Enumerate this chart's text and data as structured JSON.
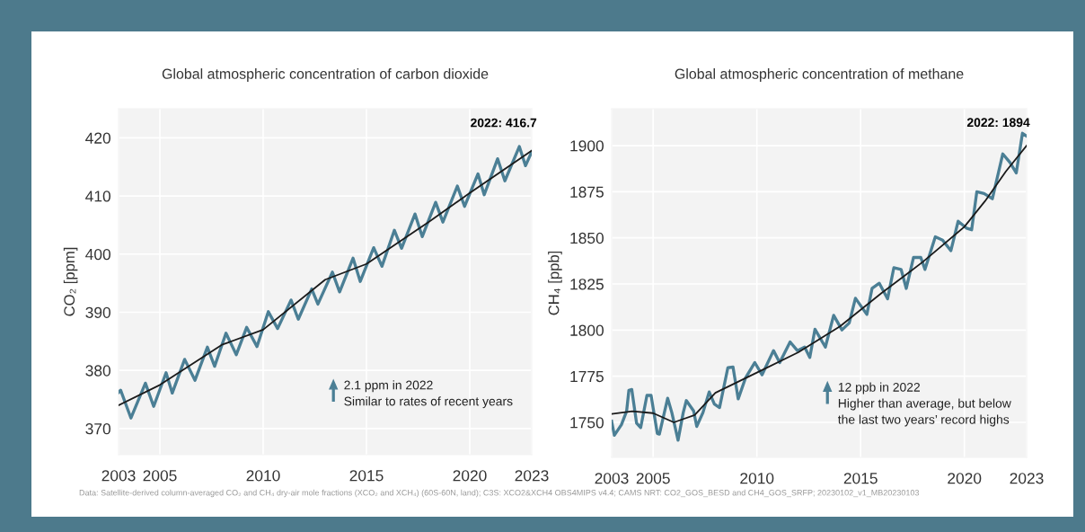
{
  "chart_data": [
    {
      "type": "line",
      "title": "Global atmospheric concentration of carbon dioxide",
      "ylabel": "CO₂ [ppm]",
      "xlim": [
        2003,
        2023
      ],
      "xticks": [
        2003,
        2005,
        2010,
        2015,
        2020,
        2023
      ],
      "ylim": [
        365.5,
        425
      ],
      "yticks": [
        370,
        380,
        390,
        400,
        410,
        420
      ],
      "grid": true,
      "legend": false,
      "series": [
        {
          "color": "#4b7f95",
          "x": [
            2003.0,
            2003.1,
            2003.6,
            2004.3,
            2004.7,
            2005.3,
            2005.6,
            2006.2,
            2006.7,
            2007.3,
            2007.65,
            2008.2,
            2008.7,
            2009.2,
            2009.7,
            2010.25,
            2010.7,
            2011.35,
            2011.7,
            2012.35,
            2012.65,
            2013.35,
            2013.7,
            2014.35,
            2014.7,
            2015.35,
            2015.75,
            2016.35,
            2016.7,
            2017.35,
            2017.7,
            2018.35,
            2018.7,
            2019.4,
            2019.75,
            2020.4,
            2020.7,
            2021.35,
            2021.7,
            2022.4,
            2022.7,
            2023.0
          ],
          "values": [
            376.2,
            376.6,
            371.8,
            377.8,
            373.8,
            379.6,
            376.1,
            381.9,
            378.3,
            384.0,
            380.7,
            386.4,
            382.7,
            387.4,
            384.1,
            390.1,
            387.2,
            392.1,
            388.8,
            394.0,
            391.4,
            396.9,
            393.5,
            399.3,
            395.3,
            401.1,
            397.9,
            404.1,
            401.0,
            406.9,
            403.0,
            408.9,
            405.5,
            411.7,
            408.2,
            413.8,
            410.2,
            416.4,
            412.6,
            418.5,
            415.2,
            417.6
          ]
        },
        {
          "color": "#1a1a1a",
          "x": [
            2003,
            2005,
            2008,
            2010,
            2013,
            2015,
            2018,
            2020,
            2023
          ],
          "values": [
            374.0,
            377.5,
            384.4,
            387.0,
            395.6,
            398.3,
            405.5,
            410.5,
            417.8
          ]
        }
      ],
      "annotations": [
        {
          "text": "2022: 416.7",
          "x": 2022,
          "y": 416.7
        },
        "2.1 ppm in 2022\nSimilar to rates of recent years",
        "Data: Satellite-derived column-averaged CO₂ and CH₄ dry-air mole fractions (XCO₂ and XCH₄) (60S-60N, land); C3S: XCO2&XCH4 OBS4MIPS v4.4; CAMS NRT: CO2_GOS_BESD and CH4_GOS_SRFP; 20230102_v1_MB20230103"
      ]
    },
    {
      "type": "line",
      "title": "Global atmospheric concentration of methane",
      "ylabel": "CH₄ [ppb]",
      "xlim": [
        2003,
        2023
      ],
      "xticks": [
        2003,
        2005,
        2010,
        2015,
        2020,
        2023
      ],
      "ylim": [
        1731,
        1920
      ],
      "yticks": [
        1750,
        1775,
        1800,
        1825,
        1850,
        1875,
        1900
      ],
      "grid": true,
      "legend": false,
      "series": [
        {
          "color": "#4b7f95",
          "x": [
            2003.0,
            2003.13,
            2003.47,
            2003.72,
            2003.83,
            2003.97,
            2004.2,
            2004.4,
            2004.7,
            2004.9,
            2005.2,
            2005.3,
            2005.7,
            2005.9,
            2006.2,
            2006.45,
            2006.6,
            2006.95,
            2007.1,
            2007.4,
            2007.7,
            2007.95,
            2008.2,
            2008.6,
            2008.85,
            2009.1,
            2009.45,
            2009.9,
            2010.25,
            2010.8,
            2011.1,
            2011.6,
            2011.95,
            2012.3,
            2012.55,
            2012.8,
            2013.3,
            2013.7,
            2014.1,
            2014.45,
            2014.75,
            2015.3,
            2015.55,
            2015.9,
            2016.3,
            2016.6,
            2016.95,
            2017.2,
            2017.55,
            2017.9,
            2018.1,
            2018.6,
            2018.95,
            2019.35,
            2019.7,
            2020.1,
            2020.35,
            2020.6,
            2020.95,
            2021.35,
            2021.85,
            2022.2,
            2022.5,
            2022.8,
            2023.0
          ],
          "values": [
            1750.6,
            1743,
            1748.7,
            1756,
            1767.4,
            1767.8,
            1749.6,
            1747.2,
            1764.6,
            1764.6,
            1744,
            1743.6,
            1763.1,
            1755.3,
            1740.3,
            1755.3,
            1761.8,
            1756.2,
            1747.8,
            1755.3,
            1766.5,
            1759.9,
            1758,
            1779.6,
            1780,
            1762.7,
            1774,
            1782.4,
            1775.8,
            1788.9,
            1782.4,
            1793.6,
            1788.9,
            1790.8,
            1785.2,
            1800.5,
            1790.8,
            1808,
            1800.1,
            1803.9,
            1817.3,
            1808.5,
            1822.6,
            1825.4,
            1817,
            1833.8,
            1832.9,
            1822.6,
            1839.4,
            1839.4,
            1832.9,
            1850.6,
            1848.8,
            1843.1,
            1859,
            1855.3,
            1854.4,
            1875,
            1874,
            1871.2,
            1895.5,
            1890.8,
            1885.2,
            1906.7,
            1905.2
          ]
        },
        {
          "color": "#1a1a1a",
          "x": [
            2003,
            2004,
            2005,
            2006,
            2007,
            2008,
            2010,
            2012,
            2014,
            2016,
            2018,
            2020,
            2021,
            2022,
            2023
          ],
          "values": [
            1754.6,
            1756,
            1755,
            1750,
            1754,
            1766,
            1777,
            1788,
            1802,
            1820,
            1837,
            1856,
            1870,
            1886,
            1900
          ]
        }
      ],
      "annotations": [
        {
          "text": "2022: 1894",
          "x": 2022,
          "y": 1894
        },
        "12 ppb in 2022\nHigher than average, but below\nthe last two years’ record highs"
      ]
    }
  ]
}
